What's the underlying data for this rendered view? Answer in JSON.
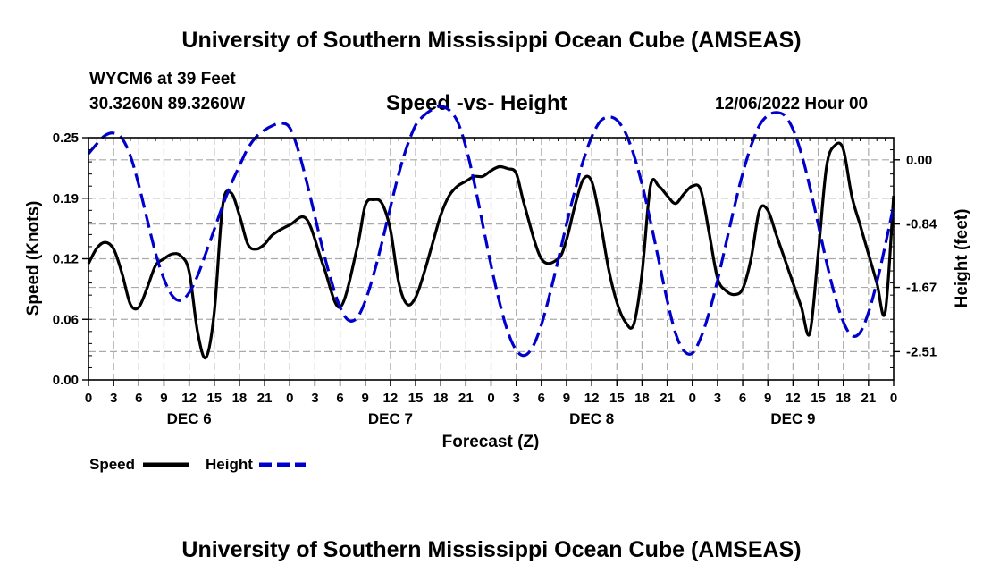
{
  "header": {
    "title": "University of Southern Mississippi Ocean Cube (AMSEAS)",
    "station": "WYCM6 at 39 Feet",
    "coords": "30.3260N  89.3260W",
    "subtitle": "Speed -vs- Height",
    "datetime": "12/06/2022 Hour 00"
  },
  "footer": {
    "title": "University of Southern Mississippi Ocean Cube (AMSEAS)"
  },
  "colors": {
    "speed": "#000000",
    "height": "#0000cc",
    "grid": "#aaaaaa"
  },
  "chart_data": {
    "type": "line",
    "title": "Speed -vs- Height",
    "xlabel": "Forecast (Z)",
    "ylabel": "Speed (Knots)",
    "y2label": "Height (feet)",
    "xlim": [
      0,
      96
    ],
    "ylim": [
      0,
      0.25
    ],
    "y2lim": [
      -2.88,
      0.29
    ],
    "x_tick_labels": [
      "0",
      "3",
      "6",
      "9",
      "12",
      "15",
      "18",
      "21",
      "0",
      "3",
      "6",
      "9",
      "12",
      "15",
      "18",
      "21",
      "0",
      "3",
      "6",
      "9",
      "12",
      "15",
      "18",
      "21",
      "0",
      "3",
      "6",
      "9",
      "12",
      "15",
      "18",
      "21",
      "0"
    ],
    "day_labels": [
      {
        "hour": 12,
        "label": "DEC 6"
      },
      {
        "hour": 36,
        "label": "DEC 7"
      },
      {
        "hour": 60,
        "label": "DEC 8"
      },
      {
        "hour": 84,
        "label": "DEC 9"
      }
    ],
    "y_ticks": [
      "0.00",
      "0.06",
      "0.12",
      "0.19",
      "0.25"
    ],
    "y_tick_values": [
      0,
      0.0625,
      0.125,
      0.1875,
      0.25
    ],
    "y2_ticks": [
      "0.00",
      "-0.84",
      "-1.67",
      "-2.51"
    ],
    "y2_tick_values": [
      0,
      -0.84,
      -1.67,
      -2.51
    ],
    "grid": true,
    "legend": {
      "position": "bottom-left",
      "entries": [
        {
          "name": "Speed",
          "style": "solid"
        },
        {
          "name": "Height",
          "style": "dashed"
        }
      ]
    },
    "series": [
      {
        "name": "Speed",
        "axis": "left",
        "x": [
          0,
          1,
          2,
          3,
          4,
          5,
          6,
          7,
          8,
          9,
          10,
          11,
          12,
          13,
          14,
          15,
          16,
          17,
          18,
          19,
          20,
          21,
          22,
          24,
          26,
          28,
          30,
          32,
          33,
          34,
          35,
          36,
          37,
          38,
          39,
          40,
          41,
          42,
          43,
          44,
          45,
          46,
          47,
          48,
          49,
          50,
          51,
          52,
          54,
          56,
          57,
          58,
          59,
          60,
          61,
          62,
          63,
          64,
          65,
          66,
          67,
          68,
          69,
          70,
          71,
          72,
          73,
          74,
          75,
          76,
          77,
          78,
          79,
          80,
          81,
          82,
          83,
          84,
          85,
          86,
          87,
          88,
          89,
          90,
          91,
          92,
          93,
          94,
          95,
          96
        ],
        "values": [
          0.12,
          0.136,
          0.142,
          0.135,
          0.11,
          0.078,
          0.075,
          0.095,
          0.118,
          0.125,
          0.13,
          0.128,
          0.112,
          0.05,
          0.023,
          0.07,
          0.18,
          0.193,
          0.17,
          0.14,
          0.135,
          0.14,
          0.15,
          0.16,
          0.166,
          0.118,
          0.075,
          0.135,
          0.18,
          0.186,
          0.182,
          0.155,
          0.1,
          0.078,
          0.085,
          0.11,
          0.14,
          0.17,
          0.19,
          0.2,
          0.205,
          0.21,
          0.21,
          0.216,
          0.22,
          0.218,
          0.213,
          0.18,
          0.125,
          0.125,
          0.145,
          0.18,
          0.207,
          0.205,
          0.165,
          0.115,
          0.08,
          0.06,
          0.057,
          0.11,
          0.2,
          0.2,
          0.19,
          0.182,
          0.192,
          0.2,
          0.196,
          0.152,
          0.105,
          0.092,
          0.088,
          0.094,
          0.125,
          0.175,
          0.175,
          0.15,
          0.125,
          0.1,
          0.075,
          0.048,
          0.13,
          0.22,
          0.242,
          0.238,
          0.19,
          0.16,
          0.13,
          0.1,
          0.07,
          0.19
        ]
      },
      {
        "name": "Height",
        "axis": "right",
        "x": [
          0,
          1,
          2,
          3,
          4,
          5,
          6,
          7,
          8,
          9,
          10,
          11,
          12,
          13,
          14,
          15,
          16,
          17,
          18,
          19,
          20,
          21,
          22,
          23,
          24,
          25,
          26,
          27,
          28,
          29,
          30,
          31,
          32,
          33,
          34,
          35,
          36,
          37,
          38,
          39,
          40,
          41,
          42,
          43,
          44,
          45,
          46,
          47,
          48,
          49,
          50,
          51,
          52,
          53,
          54,
          55,
          56,
          57,
          58,
          59,
          60,
          61,
          62,
          63,
          64,
          65,
          66,
          67,
          68,
          69,
          70,
          71,
          72,
          73,
          74,
          75,
          76,
          77,
          78,
          79,
          80,
          81,
          82,
          83,
          84,
          85,
          86,
          87,
          88,
          89,
          90,
          91,
          92,
          93,
          94,
          95,
          96
        ],
        "values": [
          0.08,
          0.21,
          0.32,
          0.35,
          0.28,
          0.05,
          -0.33,
          -0.78,
          -1.22,
          -1.56,
          -1.78,
          -1.84,
          -1.74,
          -1.52,
          -1.22,
          -0.91,
          -0.6,
          -0.32,
          -0.08,
          0.15,
          0.3,
          0.39,
          0.45,
          0.48,
          0.42,
          0.13,
          -0.28,
          -0.74,
          -1.2,
          -1.6,
          -1.93,
          -2.1,
          -2.07,
          -1.85,
          -1.5,
          -1.08,
          -0.62,
          -0.18,
          0.18,
          0.45,
          0.58,
          0.66,
          0.7,
          0.65,
          0.5,
          0.17,
          -0.3,
          -0.84,
          -1.38,
          -1.86,
          -2.25,
          -2.49,
          -2.56,
          -2.44,
          -2.16,
          -1.76,
          -1.31,
          -0.84,
          -0.4,
          -0.01,
          0.3,
          0.5,
          0.56,
          0.52,
          0.36,
          0.07,
          -0.32,
          -0.8,
          -1.32,
          -1.84,
          -2.27,
          -2.5,
          -2.53,
          -2.33,
          -2.0,
          -1.58,
          -1.1,
          -0.62,
          -0.18,
          0.18,
          0.45,
          0.58,
          0.62,
          0.58,
          0.4,
          0.08,
          -0.35,
          -0.84,
          -1.34,
          -1.78,
          -2.12,
          -2.3,
          -2.26,
          -2.0,
          -1.6,
          -1.12,
          -0.6
        ]
      }
    ]
  }
}
